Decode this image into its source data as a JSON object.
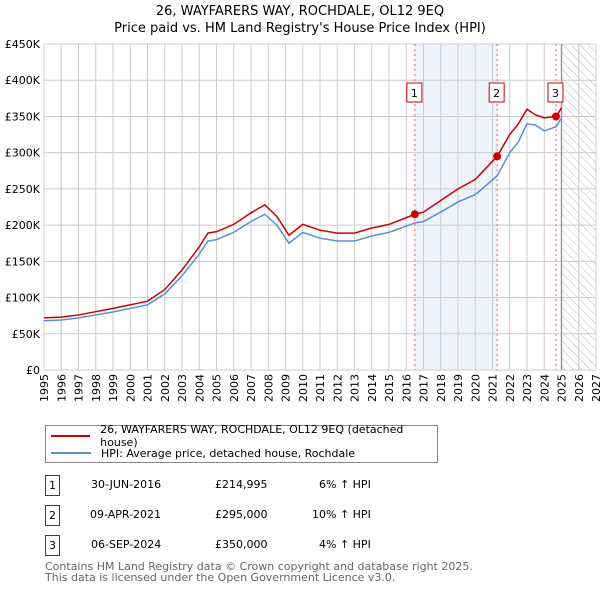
{
  "chart_data": {
    "type": "line",
    "title": "26, WAYFARERS WAY, ROCHDALE, OL12 9EQ",
    "subtitle": "Price paid vs. HM Land Registry's House Price Index (HPI)",
    "xlim": [
      1995,
      2027
    ],
    "ylim": [
      0,
      450000
    ],
    "x_ticks": [
      "1995",
      "1996",
      "1997",
      "1998",
      "1999",
      "2000",
      "2001",
      "2002",
      "2003",
      "2004",
      "2005",
      "2006",
      "2007",
      "2008",
      "2009",
      "2010",
      "2011",
      "2012",
      "2013",
      "2014",
      "2015",
      "2016",
      "2017",
      "2018",
      "2019",
      "2020",
      "2021",
      "2022",
      "2023",
      "2024",
      "2025",
      "2026",
      "2027"
    ],
    "y_ticks": [
      {
        "v": 0,
        "label": "£0"
      },
      {
        "v": 50000,
        "label": "£50K"
      },
      {
        "v": 100000,
        "label": "£100K"
      },
      {
        "v": 150000,
        "label": "£150K"
      },
      {
        "v": 200000,
        "label": "£200K"
      },
      {
        "v": 250000,
        "label": "£250K"
      },
      {
        "v": 300000,
        "label": "£300K"
      },
      {
        "v": 350000,
        "label": "£350K"
      },
      {
        "v": 400000,
        "label": "£400K"
      },
      {
        "v": 450000,
        "label": "£450K"
      }
    ],
    "grid": true,
    "shaded_range": [
      2016.5,
      2021.27
    ],
    "future_from": 2025,
    "series": [
      {
        "name": "26, WAYFARERS WAY, ROCHDALE, OL12 9EQ (detached house)",
        "color": "#cc0000",
        "x": [
          1995,
          1996,
          1997,
          1998,
          1999,
          2000,
          2001,
          2002,
          2003,
          2004,
          2004.5,
          2005,
          2006,
          2007,
          2007.8,
          2008.5,
          2009.2,
          2010,
          2011,
          2012,
          2013,
          2014,
          2015,
          2016.5,
          2017,
          2018,
          2019,
          2020,
          2021.27,
          2022,
          2022.5,
          2023,
          2023.5,
          2024,
          2024.7,
          2025
        ],
        "y": [
          72000,
          73000,
          76000,
          80500,
          85000,
          90000,
          95000,
          111000,
          138000,
          170000,
          189000,
          191000,
          201000,
          217000,
          228000,
          212000,
          186000,
          201000,
          193000,
          189000,
          189000,
          196000,
          201000,
          214995,
          218000,
          234000,
          250000,
          263000,
          295000,
          325000,
          340000,
          360000,
          352000,
          348000,
          350000,
          362000
        ]
      },
      {
        "name": "HPI: Average price, detached house, Rochdale",
        "color": "#5b8fd1",
        "x": [
          1995,
          1996,
          1997,
          1998,
          1999,
          2000,
          2001,
          2002,
          2003,
          2004,
          2004.5,
          2005,
          2006,
          2007,
          2007.8,
          2008.5,
          2009.2,
          2010,
          2011,
          2012,
          2013,
          2014,
          2015,
          2016.5,
          2017,
          2018,
          2019,
          2020,
          2021.27,
          2022,
          2022.5,
          2023,
          2023.5,
          2024,
          2024.7,
          2025
        ],
        "y": [
          68000,
          69000,
          72000,
          76000,
          80000,
          85000,
          90000,
          105000,
          130000,
          160000,
          178000,
          180000,
          190000,
          205000,
          215000,
          200000,
          175000,
          190000,
          182000,
          178000,
          178000,
          185000,
          190000,
          203000,
          205000,
          218000,
          232000,
          242000,
          268000,
          300000,
          315000,
          340000,
          338000,
          330000,
          336000,
          348000
        ]
      }
    ],
    "sales": [
      {
        "label": "1",
        "x": 2016.5,
        "y": 214995,
        "date": "30-JUN-2016",
        "price": "£214,995",
        "hpi": "6% ↑ HPI"
      },
      {
        "label": "2",
        "x": 2021.27,
        "y": 295000,
        "date": "09-APR-2021",
        "price": "£295,000",
        "hpi": "10% ↑ HPI"
      },
      {
        "label": "3",
        "x": 2024.68,
        "y": 350000,
        "date": "06-SEP-2024",
        "price": "£350,000",
        "hpi": "4% ↑ HPI"
      }
    ],
    "legend_position": "below"
  },
  "footer": {
    "line1": "Contains HM Land Registry data © Crown copyright and database right 2025.",
    "line2": "This data is licensed under the Open Government Licence v3.0."
  }
}
